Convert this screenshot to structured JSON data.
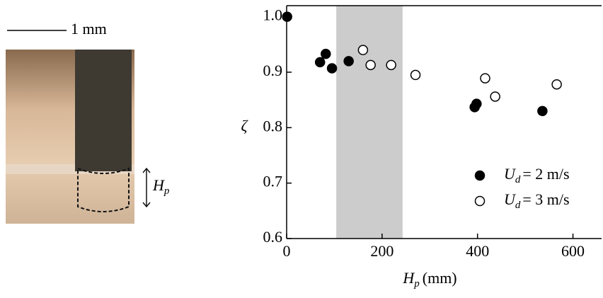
{
  "figure": {
    "scale_bar_label": "1 mm",
    "depth_label": {
      "main": "H",
      "sub": "p"
    }
  },
  "chart_data": {
    "type": "scatter",
    "x_label": {
      "main": "H",
      "sub": "p",
      "unit": "(mm)"
    },
    "y_label": "ζ",
    "xlim": [
      0,
      660
    ],
    "ylim": [
      0.6,
      1.02
    ],
    "xticks": [
      0,
      200,
      400,
      600
    ],
    "yticks": [
      0.6,
      0.7,
      0.8,
      0.9,
      {
        "value": 1.0,
        "label": "1.0"
      }
    ],
    "shaded_region": {
      "x": [
        104,
        243
      ],
      "color": "#cccccc"
    },
    "legend": "lower right",
    "series": [
      {
        "name": {
          "symbol": "U",
          "sub": "d",
          "rest": "= 2 m/s"
        },
        "marker": "filled",
        "color": "#000000",
        "x": [
          1,
          70,
          82,
          95,
          130,
          394,
          398,
          536
        ],
        "y": [
          1.0,
          0.918,
          0.933,
          0.907,
          0.92,
          0.837,
          0.843,
          0.83
        ]
      },
      {
        "name": {
          "symbol": "U",
          "sub": "d",
          "rest": "= 3 m/s"
        },
        "marker": "open",
        "color": "#000000",
        "x": [
          160,
          176,
          219,
          270,
          416,
          437,
          566
        ],
        "y": [
          0.94,
          0.913,
          0.913,
          0.895,
          0.889,
          0.856,
          0.878
        ]
      }
    ]
  }
}
